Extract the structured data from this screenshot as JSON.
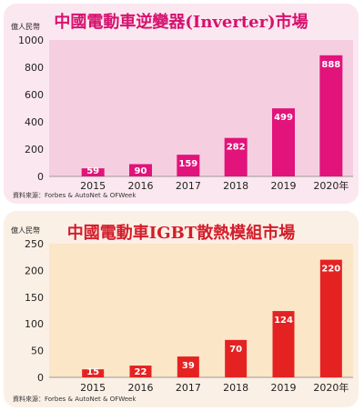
{
  "chart_data": [
    {
      "type": "bar",
      "title": "中國電動車逆變器(Inverter)市場",
      "ylabel": "億人民幣",
      "categories": [
        "2015",
        "2016",
        "2017",
        "2018",
        "2019",
        "2020年"
      ],
      "values": [
        59,
        90,
        159,
        282,
        499,
        888
      ],
      "yticks": [
        0,
        200,
        400,
        600,
        800,
        1000
      ],
      "ylim": [
        0,
        1000
      ],
      "source": "資料來源：Forbes & AutoNet & OFWeek",
      "bar_color": "#e2137a",
      "plot_bg": "#f5cfe0"
    },
    {
      "type": "bar",
      "title": "中國電動車IGBT散熱模組市場",
      "ylabel": "億人民幣",
      "categories": [
        "2015",
        "2016",
        "2017",
        "2018",
        "2019",
        "2020年"
      ],
      "values": [
        15,
        22,
        39,
        70,
        124,
        220
      ],
      "yticks": [
        0,
        50,
        100,
        150,
        200,
        250
      ],
      "ylim": [
        0,
        250
      ],
      "source": "資料來源：Forbes & AutoNet & OFWeek",
      "bar_color": "#e52222",
      "plot_bg": "#fbe6c8"
    }
  ]
}
